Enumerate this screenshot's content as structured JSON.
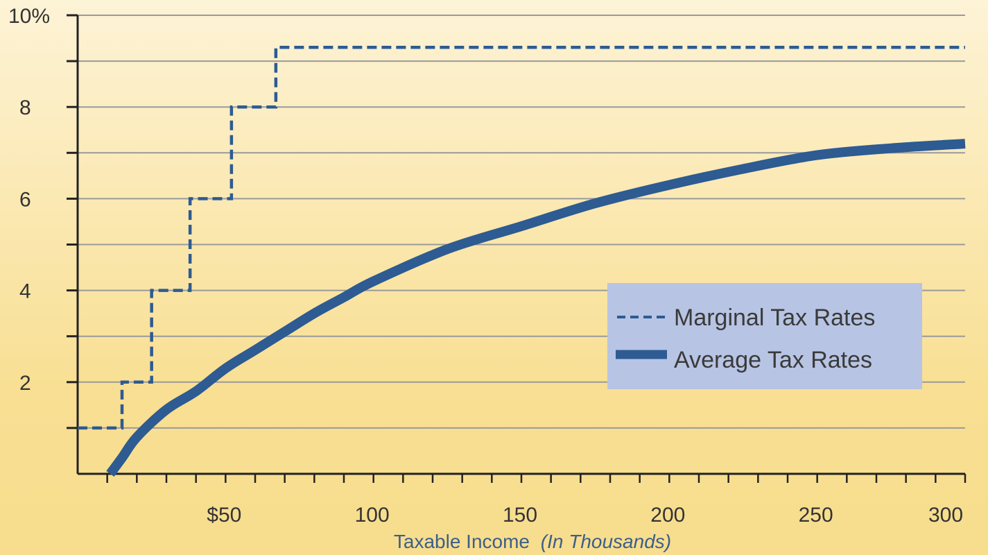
{
  "chart_data": {
    "type": "line",
    "title": "",
    "xlabel": "Taxable Income",
    "xlabel_note": "(In Thousands)",
    "ylabel": "",
    "xlim": [
      0,
      300
    ],
    "ylim": [
      0,
      10
    ],
    "x_ticks": [
      {
        "value": 50,
        "label": "$50"
      },
      {
        "value": 100,
        "label": "100"
      },
      {
        "value": 150,
        "label": "150"
      },
      {
        "value": 200,
        "label": "200"
      },
      {
        "value": 250,
        "label": "250"
      },
      {
        "value": 300,
        "label": "300"
      }
    ],
    "y_ticks": [
      {
        "value": 2,
        "label": "2"
      },
      {
        "value": 4,
        "label": "4"
      },
      {
        "value": 6,
        "label": "6"
      },
      {
        "value": 8,
        "label": "8"
      },
      {
        "value": 10,
        "label": "10%"
      }
    ],
    "grid": true,
    "legend_position": "center-right",
    "colors": {
      "series": "#2d5b92",
      "grid": "#9a9a9a",
      "legend_bg": "#b8c4e4",
      "axis": "#222222"
    },
    "series": [
      {
        "name": "Marginal Tax Rates",
        "style": "dashed-step",
        "x": [
          0,
          15,
          15,
          25,
          25,
          38,
          38,
          52,
          52,
          67,
          67,
          300
        ],
        "y": [
          1,
          1,
          2,
          2,
          4,
          4,
          6,
          6,
          8,
          8,
          9.3,
          9.3
        ]
      },
      {
        "name": "Average Tax Rates",
        "style": "thick-solid",
        "x": [
          11,
          15,
          20,
          30,
          40,
          50,
          60,
          70,
          80,
          90,
          100,
          125,
          150,
          175,
          200,
          225,
          250,
          275,
          300
        ],
        "y": [
          0,
          0.35,
          0.8,
          1.4,
          1.8,
          2.3,
          2.7,
          3.1,
          3.5,
          3.85,
          4.2,
          4.9,
          5.4,
          5.9,
          6.3,
          6.65,
          6.95,
          7.1,
          7.2
        ]
      }
    ]
  }
}
